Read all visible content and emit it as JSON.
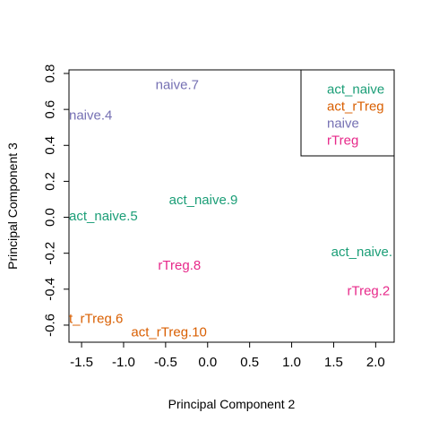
{
  "chart_data": {
    "type": "scatter",
    "xlabel": "Principal Component 2",
    "ylabel": "Principal Component 3",
    "xlim": [
      -1.65,
      2.22
    ],
    "ylim": [
      -0.695,
      0.82
    ],
    "x_ticks": [
      -1.5,
      -1.0,
      -0.5,
      0.0,
      0.5,
      1.0,
      1.5,
      2.0
    ],
    "x_tick_labels": [
      "-1.5",
      "-1.0",
      "-0.5",
      "0.0",
      "0.5",
      "1.0",
      "1.5",
      "2.0"
    ],
    "y_ticks": [
      -0.6,
      -0.4,
      -0.2,
      0.0,
      0.2,
      0.4,
      0.6,
      0.8
    ],
    "y_tick_labels": [
      "-0.6",
      "-0.4",
      "-0.2",
      "0.0",
      "0.2",
      "0.4",
      "0.6",
      "0.8"
    ],
    "grid": false,
    "legend_position": "top-right",
    "colors": {
      "act_naive": "#1b9e77",
      "act_rTreg": "#d95f02",
      "naive": "#7570b3",
      "rTreg": "#e7298a"
    },
    "legend": [
      {
        "label": "act_naive",
        "group": "act_naive"
      },
      {
        "label": "act_rTreg",
        "group": "act_rTreg"
      },
      {
        "label": "naive",
        "group": "naive"
      },
      {
        "label": "rTreg",
        "group": "rTreg"
      }
    ],
    "points": [
      {
        "label": "naive.7",
        "group": "naive",
        "x": -0.62,
        "y": 0.735
      },
      {
        "label": "naive.4",
        "group": "naive",
        "x": -1.65,
        "y": 0.565
      },
      {
        "label": "act_naive.9",
        "group": "act_naive",
        "x": -0.46,
        "y": 0.095
      },
      {
        "label": "act_naive.5",
        "group": "act_naive",
        "x": -1.65,
        "y": 0.005
      },
      {
        "label": "act_naive.",
        "group": "act_naive",
        "x": 1.47,
        "y": -0.195
      },
      {
        "label": "rTreg.8",
        "group": "rTreg",
        "x": -0.59,
        "y": -0.27
      },
      {
        "label": "rTreg.2",
        "group": "rTreg",
        "x": 1.66,
        "y": -0.41
      },
      {
        "label": "t_rTreg.6",
        "group": "act_rTreg",
        "x": -1.65,
        "y": -0.565
      },
      {
        "label": "act_rTreg.10",
        "group": "act_rTreg",
        "x": -0.91,
        "y": -0.64
      }
    ]
  }
}
